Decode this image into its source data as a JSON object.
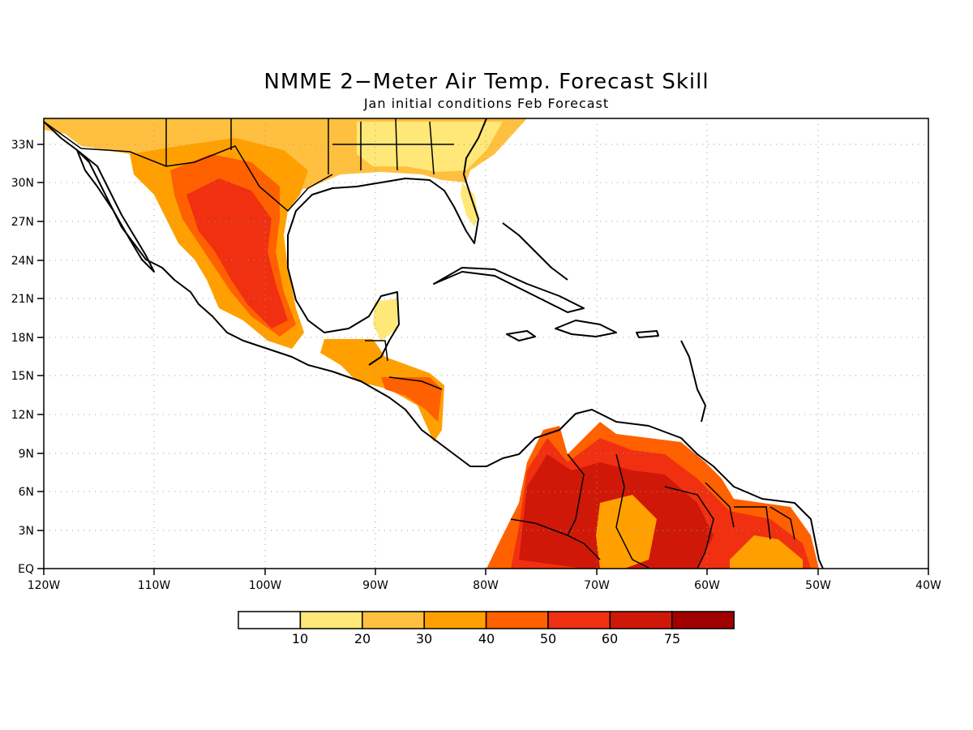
{
  "title": "NMME 2−Meter Air Temp. Forecast Skill",
  "subtitle": "Jan initial conditions  Feb Forecast",
  "lat_labels": [
    "EQ",
    "3N",
    "6N",
    "9N",
    "12N",
    "15N",
    "18N",
    "21N",
    "24N",
    "27N",
    "30N",
    "33N"
  ],
  "lon_labels": [
    "120W",
    "110W",
    "100W",
    "90W",
    "80W",
    "70W",
    "60W",
    "50W",
    "40W"
  ],
  "colorbar": {
    "labels": [
      "10",
      "20",
      "30",
      "40",
      "50",
      "60",
      "75"
    ],
    "colors": [
      "#ffffff",
      "#ffe878",
      "#ffc040",
      "#ffa000",
      "#ff6000",
      "#f03010",
      "#d01808",
      "#a00000"
    ]
  },
  "map_data": {
    "type": "filled-contour-map",
    "variable": "2-meter air temperature forecast skill",
    "lon_range": [
      -120,
      -40
    ],
    "lat_range": [
      0,
      35
    ],
    "grid": "dotted",
    "levels": [
      10,
      20,
      30,
      40,
      50,
      60,
      75
    ]
  }
}
